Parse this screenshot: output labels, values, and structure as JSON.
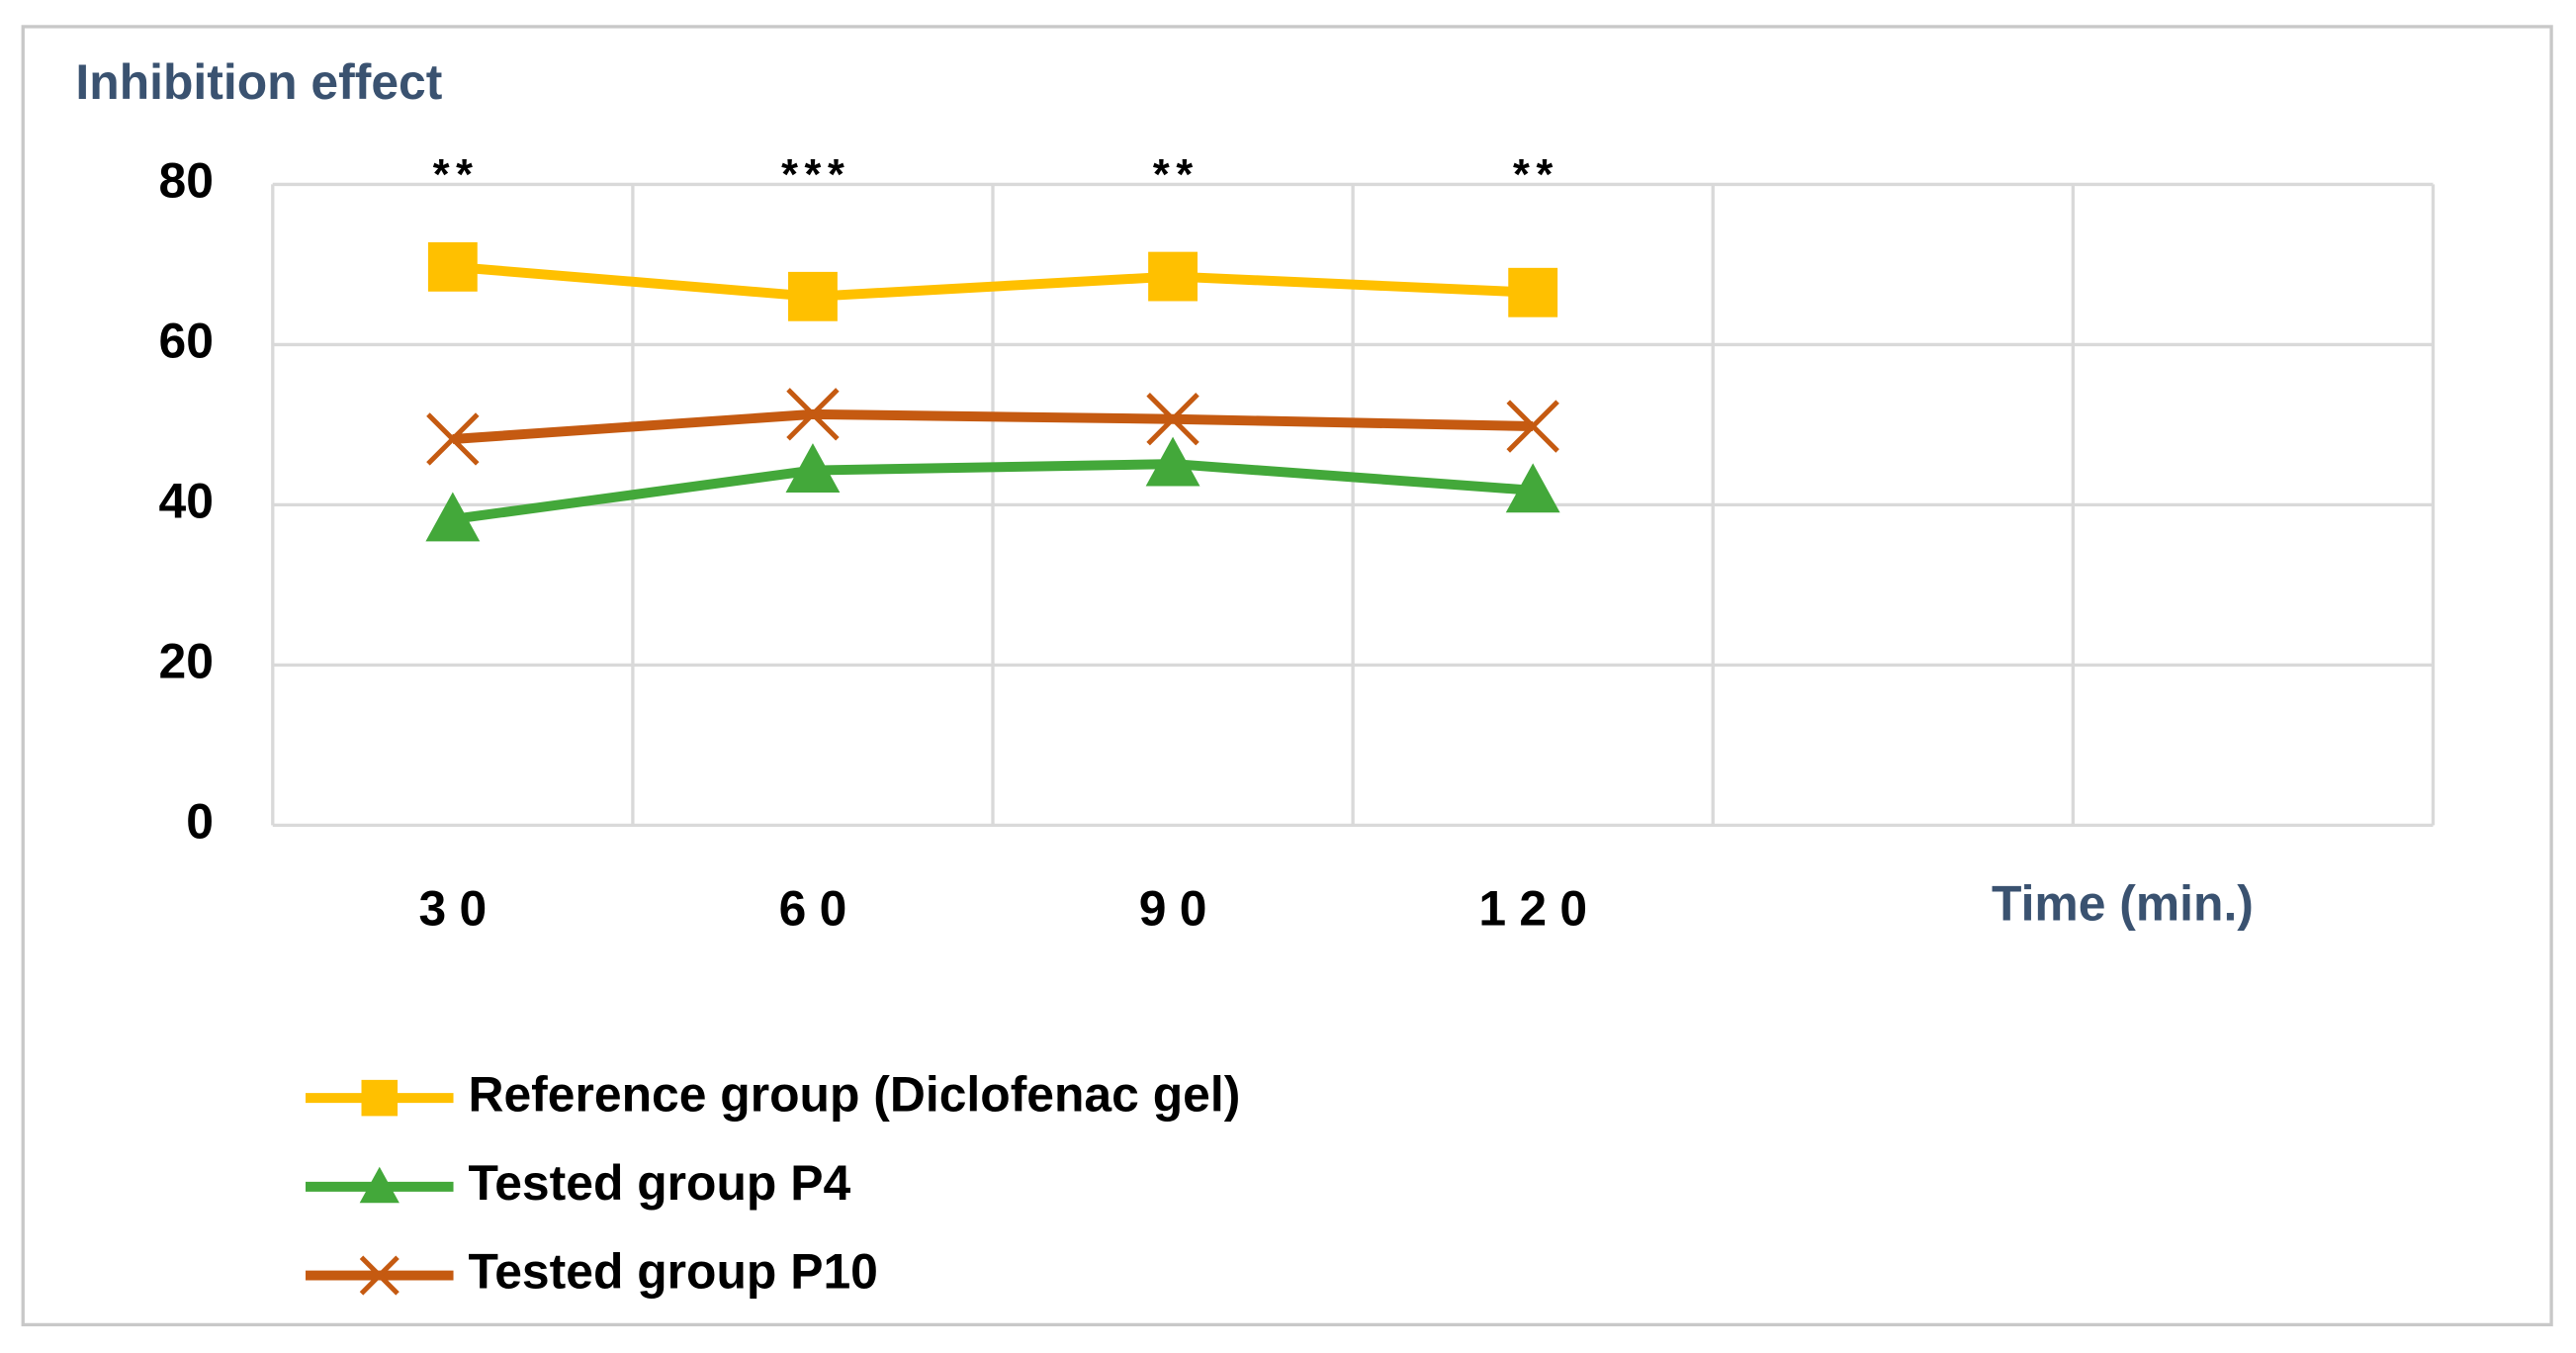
{
  "chart_data": {
    "type": "line",
    "title": "Inhibition effect",
    "x_label": "Time (min.)",
    "categories": [
      "30",
      "60",
      "90",
      "120",
      null,
      null
    ],
    "annotations": [
      "**",
      "***",
      "**",
      "**"
    ],
    "series": [
      {
        "name": "Reference group (Diclofenac gel)",
        "color": "#ffc000",
        "marker": "square",
        "values": [
          69.7,
          66,
          68.5,
          66.5,
          null,
          null
        ]
      },
      {
        "name": "Tested group P4",
        "color": "#43a83a",
        "marker": "triangle",
        "values": [
          38.2,
          44.3,
          45.1,
          41.8,
          null,
          null
        ]
      },
      {
        "name": "Tested group P10",
        "color": "#c55a11",
        "marker": "x",
        "values": [
          48.2,
          51.3,
          50.7,
          49.8,
          null,
          null
        ]
      }
    ],
    "ylim": [
      0,
      80
    ],
    "yticks": [
      0,
      20,
      40,
      60,
      80
    ],
    "grid": true,
    "legend": "bottom-left"
  }
}
